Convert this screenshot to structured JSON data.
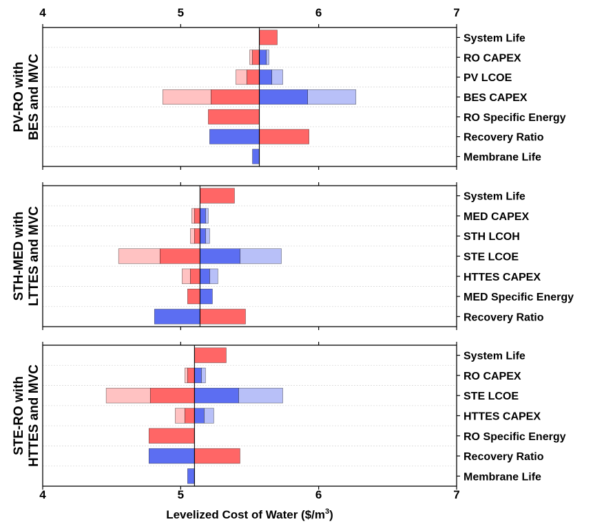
{
  "chart_data": {
    "type": "bar",
    "orientation": "horizontal-tornado",
    "xlim": [
      4,
      7
    ],
    "xticks": [
      "4",
      "5",
      "6",
      "7"
    ],
    "xlabel": "Levelized Cost of Water ($/m",
    "xlabel_sup": "3",
    "xlabel_end": ")",
    "colors": {
      "red_dark": "#ff6666",
      "red_light": "#ffc2c2",
      "blue_dark": "#5c6ef2",
      "blue_light": "#b8c0f8",
      "grid": "#d8d8d8",
      "frame": "#000000"
    },
    "panels": [
      {
        "title_line1": "PV-RO with",
        "title_line2": "BES and MVC",
        "baseline": 5.57,
        "rows": [
          {
            "label": "System Life",
            "red_inner": 5.7,
            "red_outer": null,
            "blue_inner": null,
            "blue_outer": null
          },
          {
            "label": "RO CAPEX",
            "red_inner": 5.52,
            "red_outer": 5.5,
            "blue_inner": 5.62,
            "blue_outer": 5.64
          },
          {
            "label": "PV LCOE",
            "red_inner": 5.48,
            "red_outer": 5.4,
            "blue_inner": 5.66,
            "blue_outer": 5.74
          },
          {
            "label": "BES CAPEX",
            "red_inner": 5.22,
            "red_outer": 4.87,
            "blue_inner": 5.92,
            "blue_outer": 6.27
          },
          {
            "label": "RO Specific Energy",
            "red_inner": 5.2,
            "red_outer": null,
            "blue_inner": null,
            "blue_outer": null
          },
          {
            "label": "Recovery Ratio",
            "red_inner": 5.93,
            "red_outer": null,
            "blue_inner": 5.21,
            "blue_outer": null
          },
          {
            "label": "Membrane Life",
            "red_inner": null,
            "red_outer": null,
            "blue_inner": 5.52,
            "blue_outer": null
          }
        ]
      },
      {
        "title_line1": "STH-MED with",
        "title_line2": "LTTES and MVC",
        "baseline": 5.14,
        "rows": [
          {
            "label": "System Life",
            "red_inner": 5.39,
            "red_outer": null,
            "blue_inner": null,
            "blue_outer": null
          },
          {
            "label": "MED CAPEX",
            "red_inner": 5.1,
            "red_outer": 5.08,
            "blue_inner": 5.18,
            "blue_outer": 5.2
          },
          {
            "label": "STH LCOH",
            "red_inner": 5.1,
            "red_outer": 5.07,
            "blue_inner": 5.18,
            "blue_outer": 5.21
          },
          {
            "label": "STE LCOE",
            "red_inner": 4.85,
            "red_outer": 4.55,
            "blue_inner": 5.43,
            "blue_outer": 5.73
          },
          {
            "label": "HTTES CAPEX",
            "red_inner": 5.07,
            "red_outer": 5.01,
            "blue_inner": 5.21,
            "blue_outer": 5.27
          },
          {
            "label": "MED Specific Energy",
            "red_inner": 5.05,
            "red_outer": null,
            "blue_inner": 5.23,
            "blue_outer": null
          },
          {
            "label": "Recovery Ratio",
            "red_inner": 5.47,
            "red_outer": null,
            "blue_inner": 4.81,
            "blue_outer": null
          }
        ]
      },
      {
        "title_line1": "STE-RO with",
        "title_line2": "HTTES and MVC",
        "baseline": 5.1,
        "rows": [
          {
            "label": "System Life",
            "red_inner": 5.33,
            "red_outer": null,
            "blue_inner": null,
            "blue_outer": null
          },
          {
            "label": "RO CAPEX",
            "red_inner": 5.05,
            "red_outer": 5.03,
            "blue_inner": 5.15,
            "blue_outer": 5.18
          },
          {
            "label": "STE LCOE",
            "red_inner": 4.78,
            "red_outer": 4.46,
            "blue_inner": 5.42,
            "blue_outer": 5.74
          },
          {
            "label": "HTTES CAPEX",
            "red_inner": 5.03,
            "red_outer": 4.96,
            "blue_inner": 5.17,
            "blue_outer": 5.24
          },
          {
            "label": "RO Specific Energy",
            "red_inner": 4.77,
            "red_outer": null,
            "blue_inner": null,
            "blue_outer": null
          },
          {
            "label": "Recovery Ratio",
            "red_inner": 5.43,
            "red_outer": null,
            "blue_inner": 4.77,
            "blue_outer": null
          },
          {
            "label": "Membrane Life",
            "red_inner": null,
            "red_outer": null,
            "blue_inner": 5.05,
            "blue_outer": null
          }
        ]
      }
    ]
  }
}
